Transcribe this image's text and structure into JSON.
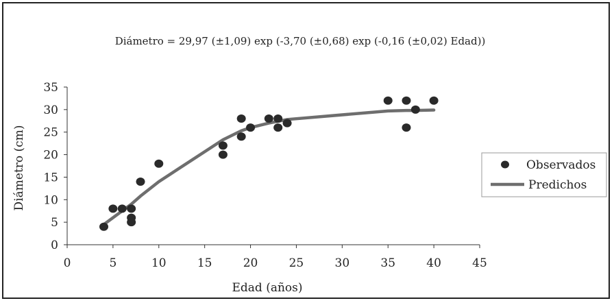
{
  "chart_data": {
    "type": "scatter",
    "title": "Diámetro = 29,97 (±1,09) exp (-3,70 (±0,68) exp (-0,16 (±0,02) Edad))",
    "xlabel": "Edad (años)",
    "ylabel": "Diámetro (cm)",
    "xlim": [
      0,
      45
    ],
    "ylim": [
      0,
      35
    ],
    "xticks": [
      "0",
      "5",
      "10",
      "15",
      "20",
      "25",
      "30",
      "35",
      "40",
      "45"
    ],
    "yticks": [
      "0",
      "5",
      "10",
      "15",
      "20",
      "25",
      "30",
      "35"
    ],
    "grid": false,
    "legend_position": "right",
    "series": [
      {
        "name": "Observados",
        "type": "scatter",
        "color": "#2a2a2a",
        "points": [
          {
            "x": 4,
            "y": 4
          },
          {
            "x": 5,
            "y": 8
          },
          {
            "x": 6,
            "y": 8
          },
          {
            "x": 7,
            "y": 8
          },
          {
            "x": 7,
            "y": 6
          },
          {
            "x": 7,
            "y": 5
          },
          {
            "x": 8,
            "y": 14
          },
          {
            "x": 10,
            "y": 18
          },
          {
            "x": 17,
            "y": 22
          },
          {
            "x": 17,
            "y": 20
          },
          {
            "x": 19,
            "y": 28
          },
          {
            "x": 19,
            "y": 24
          },
          {
            "x": 20,
            "y": 26
          },
          {
            "x": 22,
            "y": 28
          },
          {
            "x": 23,
            "y": 28
          },
          {
            "x": 23,
            "y": 26
          },
          {
            "x": 24,
            "y": 27
          },
          {
            "x": 35,
            "y": 32
          },
          {
            "x": 37,
            "y": 32
          },
          {
            "x": 37,
            "y": 26
          },
          {
            "x": 38,
            "y": 30
          },
          {
            "x": 40,
            "y": 32
          }
        ]
      },
      {
        "name": "Predichos",
        "type": "line",
        "color": "#6e6e6e",
        "points": [
          {
            "x": 4,
            "y": 4.5
          },
          {
            "x": 5,
            "y": 6
          },
          {
            "x": 6,
            "y": 7.5
          },
          {
            "x": 7,
            "y": 9
          },
          {
            "x": 8,
            "y": 10.8
          },
          {
            "x": 10,
            "y": 14
          },
          {
            "x": 17,
            "y": 23.3
          },
          {
            "x": 19,
            "y": 25.3
          },
          {
            "x": 20,
            "y": 26
          },
          {
            "x": 22,
            "y": 27
          },
          {
            "x": 23,
            "y": 27.4
          },
          {
            "x": 24,
            "y": 27.8
          },
          {
            "x": 35,
            "y": 29.7
          },
          {
            "x": 37,
            "y": 29.8
          },
          {
            "x": 38,
            "y": 29.8
          },
          {
            "x": 40,
            "y": 29.9
          }
        ]
      }
    ]
  }
}
